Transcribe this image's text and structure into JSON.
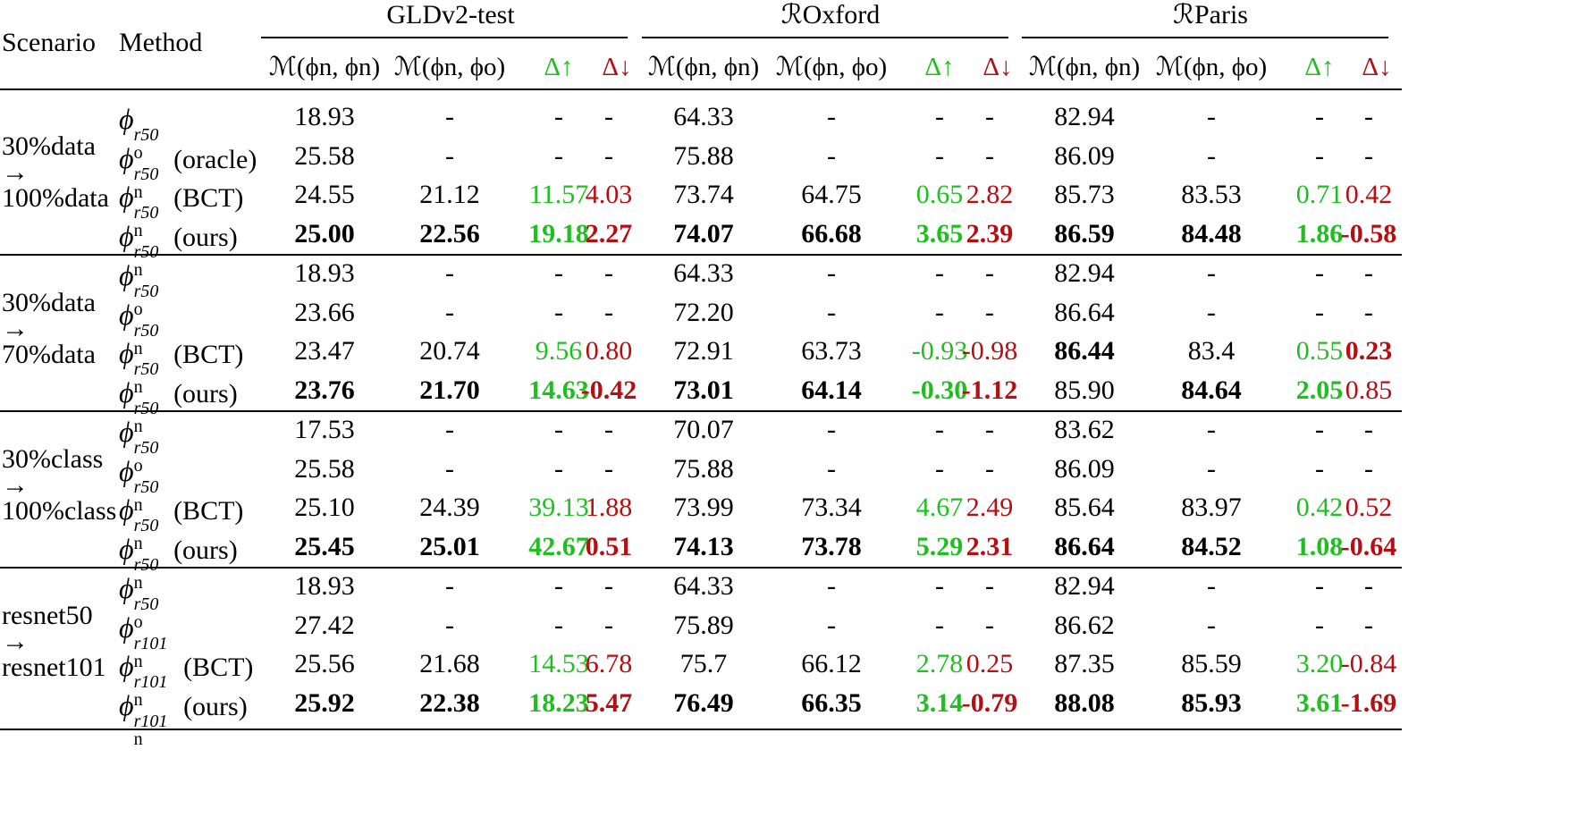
{
  "header": {
    "scenario": "Scenario",
    "method": "Method",
    "datasets": [
      "GLDv2-test",
      "ℛOxford",
      "ℛParis"
    ],
    "metrics": [
      "ℳ(ϕn, ϕn)",
      "ℳ(ϕn, ϕo)",
      "Δ↑",
      "Δ↓"
    ]
  },
  "colors": {
    "improve": "#1fbf1f",
    "degrade": "#b50f12",
    "text": "#000000"
  },
  "groups": [
    {
      "scenario": [
        "30%data",
        "→",
        "100%data"
      ],
      "rows": [
        {
          "phi": "o",
          "arch": "r50",
          "tag": "",
          "bold": false,
          "vals": [
            "18.93",
            "-",
            "-",
            "-",
            "64.33",
            "-",
            "-",
            "-",
            "82.94",
            "-",
            "-",
            "-"
          ],
          "boldcells": []
        },
        {
          "phi": "n",
          "arch": "r50",
          "tag": "(oracle)",
          "bold": false,
          "vals": [
            "25.58",
            "-",
            "-",
            "-",
            "75.88",
            "-",
            "-",
            "-",
            "86.09",
            "-",
            "-",
            "-"
          ],
          "boldcells": []
        },
        {
          "phi": "n",
          "arch": "r50",
          "tag": "(BCT)",
          "bold": false,
          "vals": [
            "24.55",
            "21.12",
            "11.57",
            "4.03",
            "73.74",
            "64.75",
            "0.65",
            "2.82",
            "85.73",
            "83.53",
            "0.71",
            "0.42"
          ],
          "boldcells": []
        },
        {
          "phi": "n",
          "arch": "r50",
          "tag": "(ours)",
          "bold": true,
          "vals": [
            "25.00",
            "22.56",
            "19.18",
            "2.27",
            "74.07",
            "66.68",
            "3.65",
            "2.39",
            "86.59",
            "84.48",
            "1.86",
            "-0.58"
          ],
          "boldcells": [
            0,
            1,
            2,
            3,
            4,
            5,
            6,
            7,
            8,
            9,
            10,
            11
          ]
        }
      ]
    },
    {
      "scenario": [
        "30%data",
        "→",
        "70%data"
      ],
      "rows": [
        {
          "phi": "o",
          "arch": "r50",
          "tag": "",
          "bold": false,
          "vals": [
            "18.93",
            "-",
            "-",
            "-",
            "64.33",
            "-",
            "-",
            "-",
            "82.94",
            "-",
            "-",
            "-"
          ],
          "boldcells": []
        },
        {
          "phi": "n",
          "arch": "r50",
          "tag": "",
          "bold": false,
          "vals": [
            "23.66",
            "-",
            "-",
            "-",
            "72.20",
            "-",
            "-",
            "-",
            "86.64",
            "-",
            "-",
            "-"
          ],
          "boldcells": []
        },
        {
          "phi": "n",
          "arch": "r50",
          "tag": "(BCT)",
          "bold": false,
          "vals": [
            "23.47",
            "20.74",
            "9.56",
            "0.80",
            "72.91",
            "63.73",
            "-0.93",
            "-0.98",
            "86.44",
            "83.4",
            "0.55",
            "0.23"
          ],
          "boldcells": [
            8,
            11
          ]
        },
        {
          "phi": "n",
          "arch": "r50",
          "tag": "(ours)",
          "bold": true,
          "vals": [
            "23.76",
            "21.70",
            "14.63",
            "-0.42",
            "73.01",
            "64.14",
            "-0.30",
            "-1.12",
            "85.90",
            "84.64",
            "2.05",
            "0.85"
          ],
          "boldcells": [
            0,
            1,
            2,
            3,
            4,
            5,
            6,
            7,
            9,
            10
          ]
        }
      ]
    },
    {
      "scenario": [
        "30%class",
        "→",
        "100%class"
      ],
      "rows": [
        {
          "phi": "o",
          "arch": "r50",
          "tag": "",
          "bold": false,
          "vals": [
            "17.53",
            "-",
            "-",
            "-",
            "70.07",
            "-",
            "-",
            "-",
            "83.62",
            "-",
            "-",
            "-"
          ],
          "boldcells": []
        },
        {
          "phi": "n",
          "arch": "r50",
          "tag": "",
          "bold": false,
          "vals": [
            "25.58",
            "-",
            "-",
            "-",
            "75.88",
            "-",
            "-",
            "-",
            "86.09",
            "-",
            "-",
            "-"
          ],
          "boldcells": []
        },
        {
          "phi": "n",
          "arch": "r50",
          "tag": "(BCT)",
          "bold": false,
          "vals": [
            "25.10",
            "24.39",
            "39.13",
            "1.88",
            "73.99",
            "73.34",
            "4.67",
            "2.49",
            "85.64",
            "83.97",
            "0.42",
            "0.52"
          ],
          "boldcells": []
        },
        {
          "phi": "n",
          "arch": "r50",
          "tag": "(ours)",
          "bold": true,
          "vals": [
            "25.45",
            "25.01",
            "42.67",
            "0.51",
            "74.13",
            "73.78",
            "5.29",
            "2.31",
            "86.64",
            "84.52",
            "1.08",
            "-0.64"
          ],
          "boldcells": [
            0,
            1,
            2,
            3,
            4,
            5,
            6,
            7,
            8,
            9,
            10,
            11
          ]
        }
      ]
    },
    {
      "scenario": [
        "resnet50",
        "→",
        "resnet101"
      ],
      "rows": [
        {
          "phi": "o",
          "arch": "r50",
          "tag": "",
          "bold": false,
          "vals": [
            "18.93",
            "-",
            "-",
            "-",
            "64.33",
            "-",
            "-",
            "-",
            "82.94",
            "-",
            "-",
            "-"
          ],
          "boldcells": []
        },
        {
          "phi": "n",
          "arch": "r101",
          "tag": "",
          "bold": false,
          "vals": [
            "27.42",
            "-",
            "-",
            "-",
            "75.89",
            "-",
            "-",
            "-",
            "86.62",
            "-",
            "-",
            "-"
          ],
          "boldcells": []
        },
        {
          "phi": "n",
          "arch": "r101",
          "tag": "(BCT)",
          "bold": false,
          "vals": [
            "25.56",
            "21.68",
            "14.53",
            "6.78",
            "75.7",
            "66.12",
            "2.78",
            "0.25",
            "87.35",
            "85.59",
            "3.20",
            "-0.84"
          ],
          "boldcells": []
        },
        {
          "phi": "n",
          "arch": "r101",
          "tag": "(ours)",
          "bold": true,
          "vals": [
            "25.92",
            "22.38",
            "18.23",
            "5.47",
            "76.49",
            "66.35",
            "3.14",
            "-0.79",
            "88.08",
            "85.93",
            "3.61",
            "-1.69"
          ],
          "boldcells": [
            0,
            1,
            2,
            3,
            4,
            5,
            6,
            7,
            8,
            9,
            10,
            11
          ]
        }
      ]
    }
  ]
}
